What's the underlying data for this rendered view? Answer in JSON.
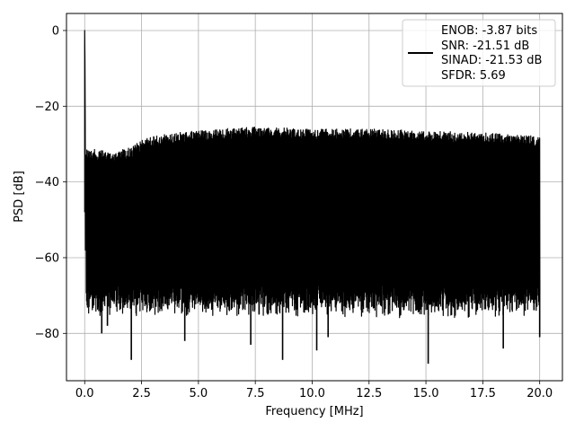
{
  "chart_data": {
    "type": "line",
    "title": "",
    "xlabel": "Frequency [MHz]",
    "ylabel": "PSD [dB]",
    "xlim": [
      -0.8,
      21.0
    ],
    "ylim": [
      -92.5,
      4.5
    ],
    "xticks": [
      0.0,
      2.5,
      5.0,
      7.5,
      10.0,
      12.5,
      15.0,
      17.5,
      20.0
    ],
    "xtick_labels": [
      "0.0",
      "2.5",
      "5.0",
      "7.5",
      "10.0",
      "12.5",
      "15.0",
      "17.5",
      "20.0"
    ],
    "yticks": [
      0,
      -20,
      -40,
      -60,
      -80
    ],
    "ytick_labels": [
      "0",
      "−20",
      "−40",
      "−60",
      "−80"
    ],
    "grid": true,
    "legend": {
      "placement": "top-right",
      "entries": [
        "ENOB: -3.87 bits",
        "SNR: -21.51 dB",
        "SINAD: -21.53 dB",
        "SFDR: 5.69"
      ]
    },
    "series": [
      {
        "color": "#000000",
        "x_range": [
          0.0,
          20.0
        ],
        "peak": {
          "x": 0.0,
          "y": 0.0
        },
        "upper_envelope": {
          "x": [
            0.05,
            1.0,
            2.0,
            2.5,
            3.0,
            4.0,
            5.0,
            6.0,
            7.5,
            10.0,
            12.5,
            15.0,
            17.5,
            20.0
          ],
          "y": [
            -31,
            -32,
            -31,
            -29,
            -28,
            -27,
            -26.5,
            -26,
            -25.5,
            -26,
            -26,
            -26.5,
            -27,
            -28
          ]
        },
        "noise_floor_typical": -70,
        "deep_dips": [
          {
            "x": 0.75,
            "y": -80
          },
          {
            "x": 1.0,
            "y": -78
          },
          {
            "x": 2.05,
            "y": -87
          },
          {
            "x": 4.4,
            "y": -82
          },
          {
            "x": 7.3,
            "y": -83
          },
          {
            "x": 8.7,
            "y": -87
          },
          {
            "x": 10.2,
            "y": -84.5
          },
          {
            "x": 10.7,
            "y": -81
          },
          {
            "x": 15.1,
            "y": -88
          },
          {
            "x": 18.4,
            "y": -84
          },
          {
            "x": 20.0,
            "y": -81
          }
        ]
      }
    ]
  }
}
